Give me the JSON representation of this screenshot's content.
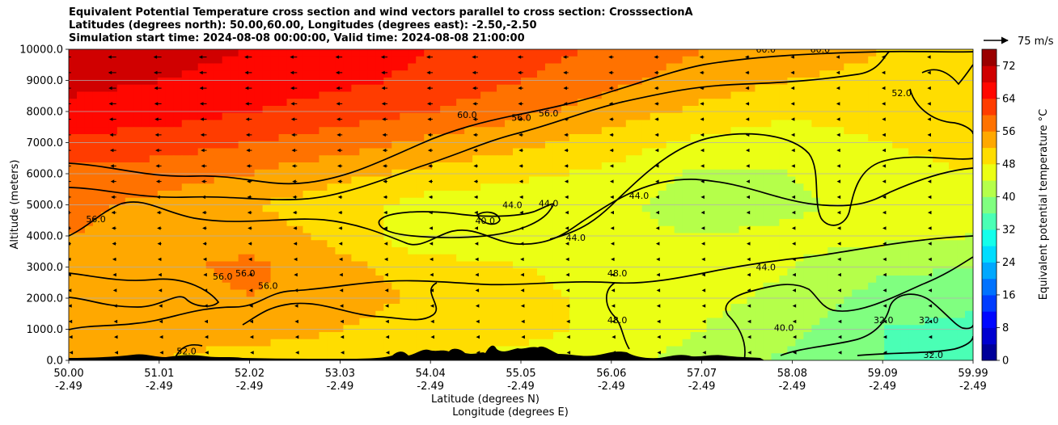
{
  "figure": {
    "title_lines": [
      "Equivalent Potential Temperature cross section and wind vectors parallel to cross section: CrosssectionA",
      "Latitudes (degrees north): 50.00,60.00, Longitudes (degrees east): -2.50,-2.50",
      "Simulation start time: 2024-08-08 00:00:00, Valid time: 2024-08-08 21:00:00"
    ],
    "quiver_key_label": "75 m/s"
  },
  "chart_data": {
    "type": "heatmap",
    "subtype": "filled contour cross-section with contour lines and wind vectors",
    "ylabel": "Altitude (meters)",
    "xlabel_lines": [
      "Latitude (degrees N)",
      "Longitude (degrees E)"
    ],
    "ylim": [
      0,
      10000
    ],
    "y_ticks": [
      0,
      1000,
      2000,
      3000,
      4000,
      5000,
      6000,
      7000,
      8000,
      9000,
      10000
    ],
    "y_tick_labels": [
      "0.0",
      "1000.0",
      "2000.0",
      "3000.0",
      "4000.0",
      "5000.0",
      "6000.0",
      "7000.0",
      "8000.0",
      "9000.0",
      "10000.0"
    ],
    "xlim": [
      50.0,
      59.99
    ],
    "x_ticks": [
      {
        "lat": "50.00",
        "lon": "-2.49"
      },
      {
        "lat": "51.01",
        "lon": "-2.49"
      },
      {
        "lat": "52.02",
        "lon": "-2.49"
      },
      {
        "lat": "53.03",
        "lon": "-2.49"
      },
      {
        "lat": "54.04",
        "lon": "-2.49"
      },
      {
        "lat": "55.05",
        "lon": "-2.49"
      },
      {
        "lat": "56.06",
        "lon": "-2.49"
      },
      {
        "lat": "57.07",
        "lon": "-2.49"
      },
      {
        "lat": "58.08",
        "lon": "-2.49"
      },
      {
        "lat": "59.09",
        "lon": "-2.49"
      },
      {
        "lat": "59.99",
        "lon": "-2.49"
      }
    ],
    "grid": "horizontal",
    "colorbar": {
      "label": "Equivalent potential temperature $^\\circ$C",
      "label_display": "Equivalent potential temperature °C",
      "range": [
        0,
        76
      ],
      "ticks": [
        "0",
        "8",
        "16",
        "24",
        "32",
        "40",
        "48",
        "56",
        "64",
        "72"
      ],
      "tick_values": [
        0,
        8,
        16,
        24,
        32,
        40,
        48,
        56,
        64,
        72
      ]
    },
    "field_samples": {
      "note": "approximate theta-e (°C) at latitude/altitude samples read from fill colours",
      "lat": [
        50.0,
        51.0,
        52.0,
        53.0,
        54.0,
        55.0,
        56.0,
        57.0,
        58.0,
        59.0,
        59.99
      ],
      "alt": [
        0,
        1000,
        2000,
        3000,
        4000,
        5000,
        6000,
        7000,
        8000,
        9000,
        10000
      ],
      "values": [
        [
          52,
          52,
          50,
          50,
          48,
          47,
          46,
          42,
          39,
          36,
          35
        ],
        [
          54,
          54,
          54,
          52,
          50,
          49,
          47,
          44,
          41,
          36,
          35
        ],
        [
          54,
          54,
          56,
          54,
          51,
          49,
          47,
          45,
          43,
          38,
          37
        ],
        [
          54,
          55,
          57,
          53,
          50,
          48,
          47,
          46,
          44,
          41,
          40
        ],
        [
          56,
          55,
          54,
          51,
          44,
          46,
          45,
          44,
          45,
          45,
          44
        ],
        [
          57,
          55,
          52,
          50,
          46,
          45,
          45,
          42,
          43,
          46,
          47
        ],
        [
          59,
          58,
          56,
          53,
          51,
          49,
          47,
          43,
          44,
          47,
          48
        ],
        [
          63,
          62,
          60,
          58,
          55,
          53,
          50,
          47,
          45,
          48,
          49
        ],
        [
          67,
          66,
          64,
          62,
          60,
          57,
          54,
          51,
          49,
          51,
          51
        ],
        [
          69,
          68,
          67,
          65,
          63,
          60,
          57,
          54,
          52,
          51,
          50
        ],
        [
          70,
          69,
          68,
          66,
          64,
          62,
          59,
          56,
          54,
          52,
          51
        ]
      ]
    },
    "contour_labels": [
      {
        "text": "60.0",
        "lat": 54.4,
        "alt": 7900
      },
      {
        "text": "56.0",
        "lat": 55.0,
        "alt": 7800
      },
      {
        "text": "56.0",
        "lat": 55.3,
        "alt": 7950
      },
      {
        "text": "60.0",
        "lat": 57.7,
        "alt": 10000
      },
      {
        "text": "60.0",
        "lat": 58.3,
        "alt": 10000
      },
      {
        "text": "52.0",
        "lat": 59.2,
        "alt": 8600
      },
      {
        "text": "56.0",
        "lat": 50.3,
        "alt": 4550
      },
      {
        "text": "44.0",
        "lat": 54.9,
        "alt": 5000
      },
      {
        "text": "44.0",
        "lat": 55.3,
        "alt": 5050
      },
      {
        "text": "40.0",
        "lat": 54.6,
        "alt": 4500
      },
      {
        "text": "44.0",
        "lat": 55.6,
        "alt": 3950
      },
      {
        "text": "44.0",
        "lat": 56.3,
        "alt": 5300
      },
      {
        "text": "56.0",
        "lat": 51.7,
        "alt": 2700
      },
      {
        "text": "56.0",
        "lat": 51.95,
        "alt": 2800
      },
      {
        "text": "56.0",
        "lat": 52.2,
        "alt": 2400
      },
      {
        "text": "48.0",
        "lat": 56.06,
        "alt": 2800
      },
      {
        "text": "48.0",
        "lat": 56.06,
        "alt": 1300
      },
      {
        "text": "44.0",
        "lat": 57.7,
        "alt": 3000
      },
      {
        "text": "40.0",
        "lat": 57.9,
        "alt": 1050
      },
      {
        "text": "32.0",
        "lat": 59.0,
        "alt": 1300
      },
      {
        "text": "32.0",
        "lat": 59.5,
        "alt": 1300
      },
      {
        "text": "32.0",
        "lat": 59.55,
        "alt": 180
      },
      {
        "text": "52.0",
        "lat": 51.3,
        "alt": 300
      }
    ]
  },
  "colors": {
    "colormap": "jet",
    "contour_line": "#000000",
    "terrain": "#000000",
    "grid": "#b0b0b0"
  }
}
